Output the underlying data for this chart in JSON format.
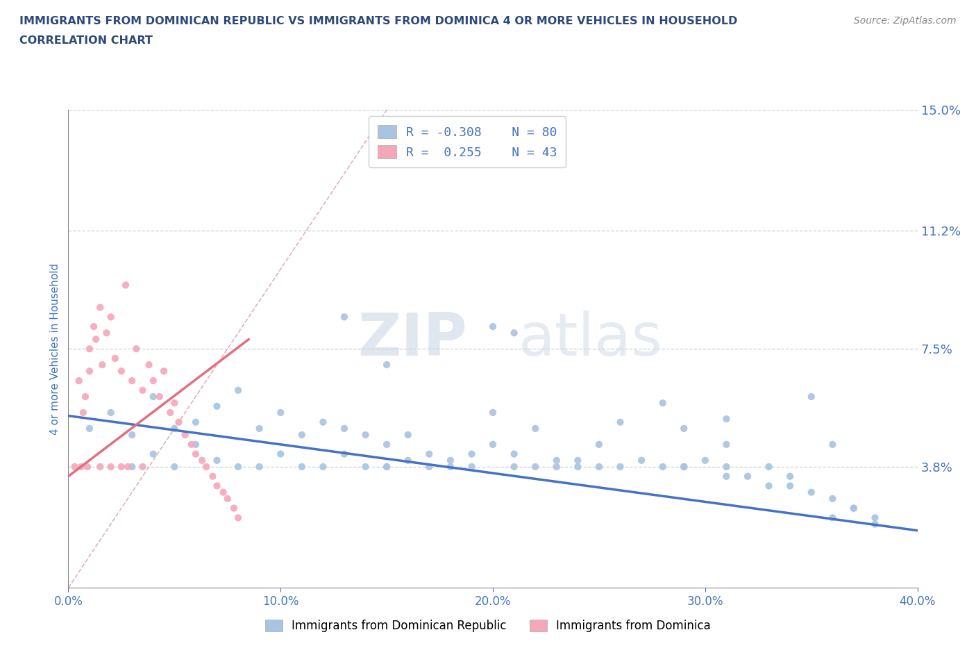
{
  "title_line1": "IMMIGRANTS FROM DOMINICAN REPUBLIC VS IMMIGRANTS FROM DOMINICA 4 OR MORE VEHICLES IN HOUSEHOLD",
  "title_line2": "CORRELATION CHART",
  "source": "Source: ZipAtlas.com",
  "ylabel": "4 or more Vehicles in Household",
  "xlim": [
    0.0,
    0.4
  ],
  "ylim": [
    0.0,
    0.15
  ],
  "xticks": [
    0.0,
    0.1,
    0.2,
    0.3,
    0.4
  ],
  "xticklabels": [
    "0.0%",
    "10.0%",
    "20.0%",
    "30.0%",
    "40.0%"
  ],
  "ytick_values": [
    0.038,
    0.075,
    0.112,
    0.15
  ],
  "ytick_labels": [
    "3.8%",
    "7.5%",
    "11.2%",
    "15.0%"
  ],
  "color_blue": "#a8c4e0",
  "color_pink": "#f4a7b9",
  "line_blue": "#4472c4",
  "line_pink": "#e07080",
  "R_blue": -0.308,
  "N_blue": 80,
  "R_pink": 0.255,
  "N_pink": 43,
  "legend_label_blue": "Immigrants from Dominican Republic",
  "legend_label_pink": "Immigrants from Dominica",
  "title_color": "#2e4a7a",
  "axis_label_color": "#4472c4",
  "tick_label_color": "#4472c4",
  "watermark_zip": "ZIP",
  "watermark_atlas": "atlas",
  "blue_scatter_x": [
    0.01,
    0.02,
    0.03,
    0.03,
    0.04,
    0.04,
    0.05,
    0.05,
    0.06,
    0.06,
    0.07,
    0.07,
    0.08,
    0.08,
    0.09,
    0.09,
    0.1,
    0.1,
    0.11,
    0.11,
    0.12,
    0.12,
    0.13,
    0.13,
    0.14,
    0.14,
    0.15,
    0.15,
    0.16,
    0.16,
    0.17,
    0.17,
    0.18,
    0.18,
    0.19,
    0.19,
    0.2,
    0.21,
    0.21,
    0.22,
    0.22,
    0.23,
    0.24,
    0.24,
    0.25,
    0.25,
    0.26,
    0.27,
    0.28,
    0.29,
    0.3,
    0.31,
    0.32,
    0.33,
    0.34,
    0.35,
    0.36,
    0.36,
    0.37,
    0.38,
    0.21,
    0.28,
    0.31,
    0.35,
    0.2,
    0.29,
    0.31,
    0.13,
    0.15,
    0.2,
    0.26,
    0.29,
    0.31,
    0.36,
    0.37,
    0.38,
    0.33,
    0.34,
    0.15,
    0.23
  ],
  "blue_scatter_y": [
    0.05,
    0.055,
    0.048,
    0.038,
    0.06,
    0.042,
    0.05,
    0.038,
    0.052,
    0.045,
    0.057,
    0.04,
    0.062,
    0.038,
    0.05,
    0.038,
    0.055,
    0.042,
    0.048,
    0.038,
    0.052,
    0.038,
    0.05,
    0.042,
    0.048,
    0.038,
    0.045,
    0.038,
    0.048,
    0.04,
    0.042,
    0.038,
    0.04,
    0.038,
    0.042,
    0.038,
    0.045,
    0.042,
    0.038,
    0.05,
    0.038,
    0.04,
    0.038,
    0.04,
    0.045,
    0.038,
    0.038,
    0.04,
    0.038,
    0.038,
    0.04,
    0.035,
    0.035,
    0.038,
    0.032,
    0.03,
    0.028,
    0.022,
    0.025,
    0.02,
    0.08,
    0.058,
    0.053,
    0.06,
    0.055,
    0.05,
    0.038,
    0.085,
    0.07,
    0.082,
    0.052,
    0.038,
    0.045,
    0.045,
    0.025,
    0.022,
    0.032,
    0.035,
    0.038,
    0.038
  ],
  "pink_scatter_x": [
    0.005,
    0.007,
    0.008,
    0.01,
    0.01,
    0.012,
    0.013,
    0.015,
    0.016,
    0.018,
    0.02,
    0.022,
    0.025,
    0.025,
    0.027,
    0.03,
    0.032,
    0.035,
    0.038,
    0.04,
    0.043,
    0.045,
    0.048,
    0.05,
    0.052,
    0.055,
    0.058,
    0.06,
    0.063,
    0.065,
    0.068,
    0.07,
    0.073,
    0.075,
    0.078,
    0.08,
    0.003,
    0.006,
    0.009,
    0.015,
    0.02,
    0.028,
    0.035
  ],
  "pink_scatter_y": [
    0.065,
    0.055,
    0.06,
    0.075,
    0.068,
    0.082,
    0.078,
    0.088,
    0.07,
    0.08,
    0.085,
    0.072,
    0.068,
    0.038,
    0.095,
    0.065,
    0.075,
    0.062,
    0.07,
    0.065,
    0.06,
    0.068,
    0.055,
    0.058,
    0.052,
    0.048,
    0.045,
    0.042,
    0.04,
    0.038,
    0.035,
    0.032,
    0.03,
    0.028,
    0.025,
    0.022,
    0.038,
    0.038,
    0.038,
    0.038,
    0.038,
    0.038,
    0.038
  ],
  "ref_line_color": "#d4a0a8",
  "grid_color": "#c8d0dc",
  "blue_trend_x": [
    0.0,
    0.4
  ],
  "blue_trend_y_start": 0.054,
  "blue_trend_y_end": 0.018,
  "pink_trend_x_start": 0.0,
  "pink_trend_x_end": 0.085,
  "pink_trend_y_start": 0.035,
  "pink_trend_y_end": 0.078
}
